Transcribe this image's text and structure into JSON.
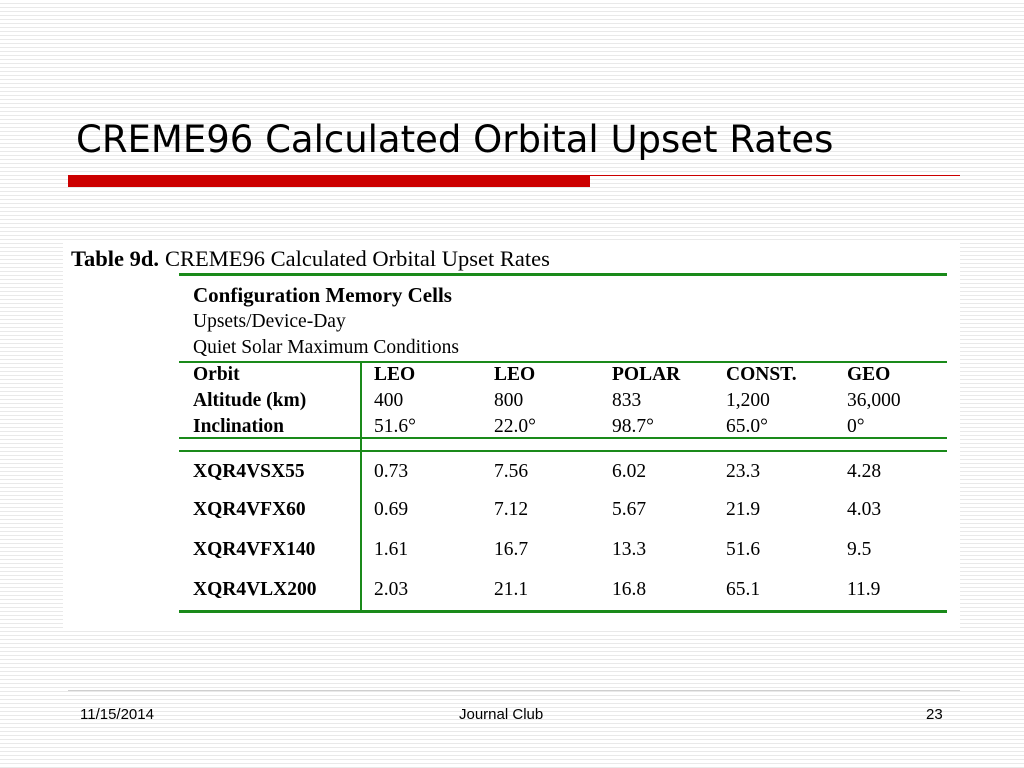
{
  "slide": {
    "title": "CREME96 Calculated Orbital Upset Rates",
    "footer": {
      "date": "11/15/2014",
      "center": "Journal Club",
      "page": "23"
    }
  },
  "table": {
    "caption_label": "Table 9d.",
    "caption_text": "CREME96 Calculated Orbital Upset Rates",
    "heading": "Configuration Memory Cells",
    "subheading1": "Upsets/Device-Day",
    "subheading2": "Quiet Solar Maximum Conditions",
    "row_labels": [
      "Orbit",
      "Altitude (km)",
      "Inclination"
    ],
    "orbits": [
      "LEO",
      "LEO",
      "POLAR",
      "CONST.",
      "GEO"
    ],
    "altitudes": [
      "400",
      "800",
      "833",
      "1,200",
      "36,000"
    ],
    "inclinations": [
      "51.6°",
      "22.0°",
      "98.7°",
      "65.0°",
      "0°"
    ],
    "devices": [
      {
        "name": "XQR4VSX55",
        "values": [
          "0.73",
          "7.56",
          "6.02",
          "23.3",
          "4.28"
        ]
      },
      {
        "name": "XQR4VFX60",
        "values": [
          "0.69",
          "7.12",
          "5.67",
          "21.9",
          "4.03"
        ]
      },
      {
        "name": "XQR4VFX140",
        "values": [
          "1.61",
          "16.7",
          "13.3",
          "51.6",
          "9.5"
        ]
      },
      {
        "name": "XQR4VLX200",
        "values": [
          "2.03",
          "21.1",
          "16.8",
          "65.1",
          "11.9"
        ]
      }
    ]
  },
  "colors": {
    "accent_red": "#cc0000",
    "table_green": "#1a8a1a"
  }
}
